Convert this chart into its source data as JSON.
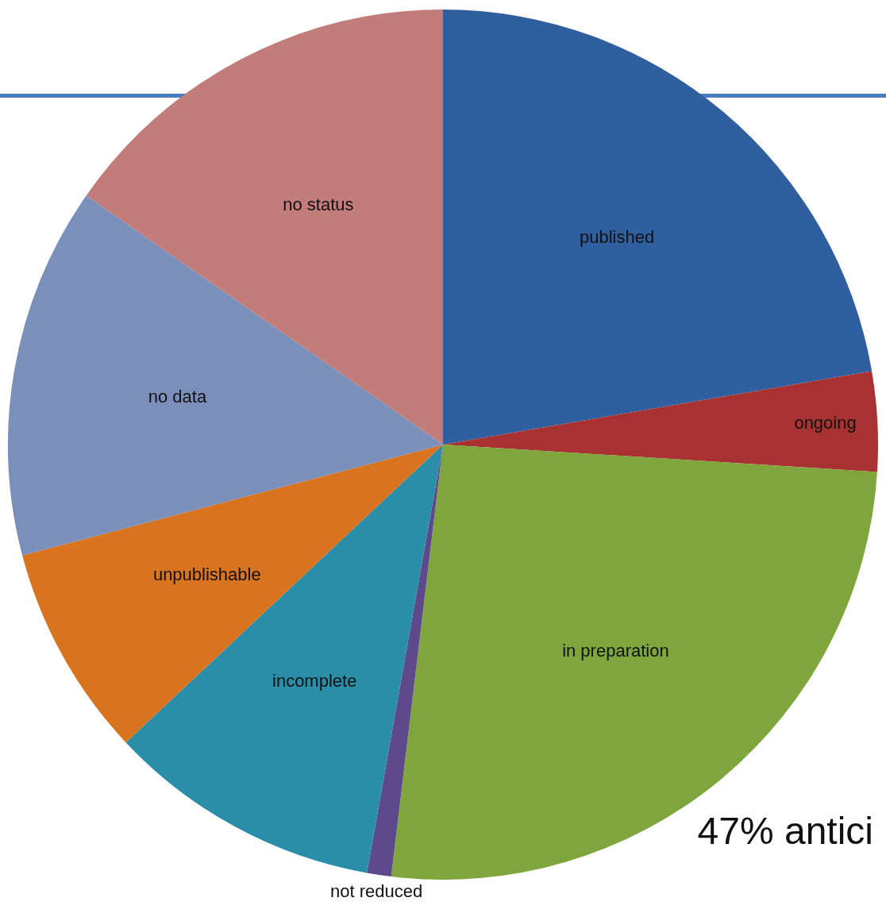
{
  "chart_data": {
    "type": "pie",
    "categories": [
      "published",
      "ongoing",
      "in preparation",
      "not reduced",
      "incomplete",
      "unpublishable",
      "no data",
      "no status"
    ],
    "values": [
      22.3,
      3.7,
      25.9,
      0.9,
      10.2,
      7.9,
      13.8,
      15.3
    ],
    "colors": [
      "#2f5f9e",
      "#a83232",
      "#7fa63c",
      "#5e4a8a",
      "#2a8ea8",
      "#d8731f",
      "#7a90bb",
      "#c27c7a"
    ],
    "annotations": [
      "47% antici"
    ]
  }
}
